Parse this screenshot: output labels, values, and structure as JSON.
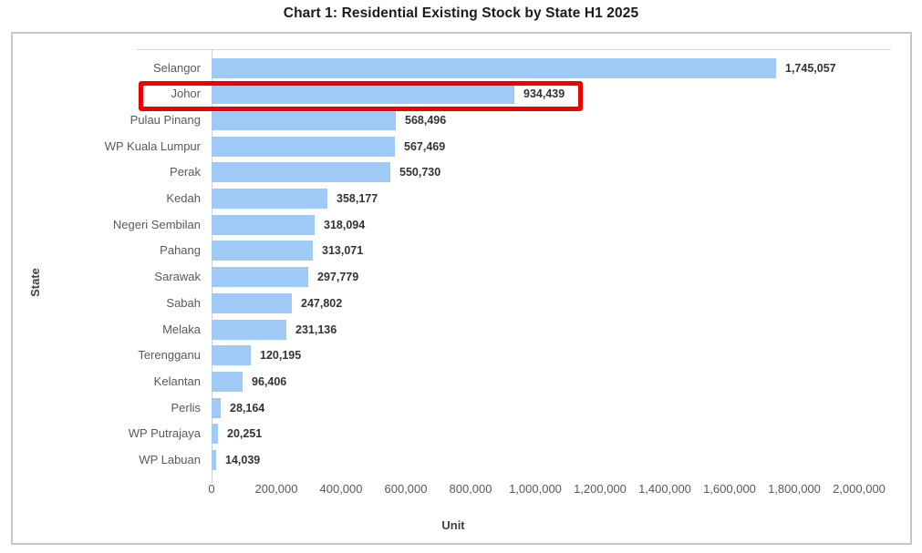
{
  "page": {
    "title": "Chart 1: Residential Existing Stock by State H1 2025"
  },
  "chart_data": {
    "type": "bar",
    "orientation": "horizontal",
    "title": "Chart 1: Residential Existing Stock by State H1 2025",
    "xlabel": "Unit",
    "ylabel": "State",
    "xlim": [
      0,
      2000000
    ],
    "grid": false,
    "legend": null,
    "bar_color": "#9ecaf5",
    "category_label_color": "#595959",
    "value_label_color": "#333333",
    "highlight": {
      "category": "Johor",
      "box_color": "#ee0000",
      "note": "red rectangle drawn around Johor row (label, bar and value)"
    },
    "bars": [
      {
        "category": "Selangor",
        "value": 1745057,
        "label": "1,745,057"
      },
      {
        "category": "Johor",
        "value": 934439,
        "label": "934,439"
      },
      {
        "category": "Pulau Pinang",
        "value": 568496,
        "label": "568,496"
      },
      {
        "category": "WP Kuala Lumpur",
        "value": 567469,
        "label": "567,469"
      },
      {
        "category": "Perak",
        "value": 550730,
        "label": "550,730"
      },
      {
        "category": "Kedah",
        "value": 358177,
        "label": "358,177"
      },
      {
        "category": "Negeri Sembilan",
        "value": 318094,
        "label": "318,094"
      },
      {
        "category": "Pahang",
        "value": 313071,
        "label": "313,071"
      },
      {
        "category": "Sarawak",
        "value": 297779,
        "label": "297,779"
      },
      {
        "category": "Sabah",
        "value": 247802,
        "label": "247,802"
      },
      {
        "category": "Melaka",
        "value": 231136,
        "label": "231,136"
      },
      {
        "category": "Terengganu",
        "value": 120195,
        "label": "120,195"
      },
      {
        "category": "Kelantan",
        "value": 96406,
        "label": "96,406"
      },
      {
        "category": "Perlis",
        "value": 28164,
        "label": "28,164"
      },
      {
        "category": "WP Putrajaya",
        "value": 20251,
        "label": "20,251"
      },
      {
        "category": "WP Labuan",
        "value": 14039,
        "label": "14,039"
      }
    ],
    "x_ticks": [
      {
        "value": 0,
        "label": "0"
      },
      {
        "value": 200000,
        "label": "200,000"
      },
      {
        "value": 400000,
        "label": "400,000"
      },
      {
        "value": 600000,
        "label": "600,000"
      },
      {
        "value": 800000,
        "label": "800,000"
      },
      {
        "value": 1000000,
        "label": "1,000,000"
      },
      {
        "value": 1200000,
        "label": "1,200,000"
      },
      {
        "value": 1400000,
        "label": "1,400,000"
      },
      {
        "value": 1600000,
        "label": "1,600,000"
      },
      {
        "value": 1800000,
        "label": "1,800,000"
      },
      {
        "value": 2000000,
        "label": "2,000,000"
      }
    ]
  }
}
